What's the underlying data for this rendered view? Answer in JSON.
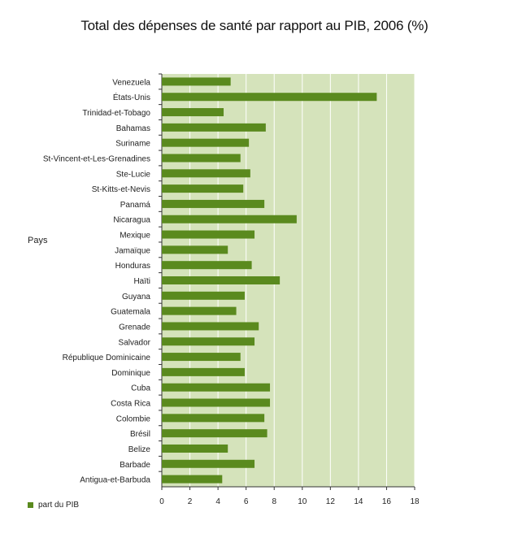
{
  "chart_data": {
    "type": "bar",
    "orientation": "horizontal",
    "title": "Total des dépenses de santé par rapport au PIB, 2006 (%)",
    "ylabel": "Pays",
    "xlabel": "",
    "xlim": [
      0,
      18
    ],
    "xticks": [
      0,
      2,
      4,
      6,
      8,
      10,
      12,
      14,
      16,
      18
    ],
    "grid": true,
    "legend_position": "bottom-left",
    "colors": {
      "bar": "#5a8a1e",
      "plot_bg": "#d5e3bb",
      "grid": "#ffffff"
    },
    "categories": [
      "Venezuela",
      "États-Unis",
      "Trinidad-et-Tobago",
      "Bahamas",
      "Suriname",
      "St-Vincent-et-Les-Grenadines",
      "Ste-Lucie",
      "St-Kitts-et-Nevis",
      "Panamá",
      "Nicaragua",
      "Mexique",
      "Jamaïque",
      "Honduras",
      "Haïti",
      "Guyana",
      "Guatemala",
      "Grenade",
      "Salvador",
      "République Dominicaine",
      "Dominique",
      "Cuba",
      "Costa Rica",
      "Colombie",
      "Brésil",
      "Belize",
      "Barbade",
      "Antigua-et-Barbuda"
    ],
    "series": [
      {
        "name": "part du PIB",
        "values": [
          4.9,
          15.3,
          4.4,
          7.4,
          6.2,
          5.6,
          6.3,
          5.8,
          7.3,
          9.6,
          6.6,
          4.7,
          6.4,
          8.4,
          5.9,
          5.3,
          6.9,
          6.6,
          5.6,
          5.9,
          7.7,
          7.7,
          7.3,
          7.5,
          4.7,
          6.6,
          4.3
        ]
      }
    ]
  }
}
